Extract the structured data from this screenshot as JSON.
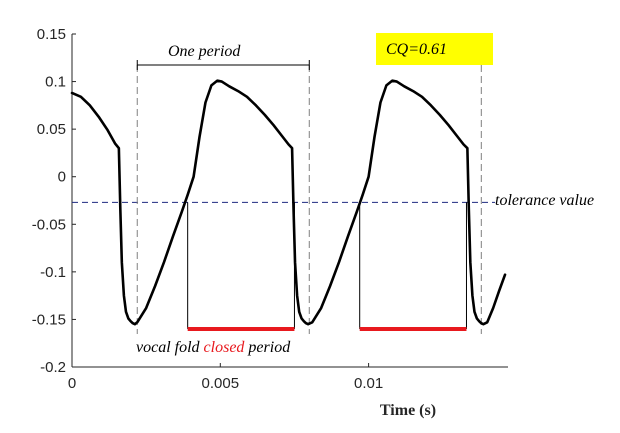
{
  "chart_data": {
    "type": "line",
    "title": "",
    "xlabel": "Time (s)",
    "ylabel": "",
    "xlim": [
      0,
      0.0147
    ],
    "ylim": [
      -0.2,
      0.15
    ],
    "x_ticks": [
      0,
      0.005,
      0.01
    ],
    "x_tick_labels": [
      "0",
      "0.005",
      "0.01"
    ],
    "y_ticks": [
      0.15,
      0.1,
      0.05,
      0,
      -0.05,
      -0.1,
      -0.15,
      -0.2
    ],
    "y_tick_labels": [
      "0.15",
      "0.1",
      "0.05",
      "0",
      "-0.05",
      "-0.1",
      "-0.15",
      "-0.2"
    ],
    "grid": false,
    "colors": {
      "signal": "#000000",
      "tolerance_line": "#1f2a80",
      "period_markers": "#808080",
      "closed_period": "#e8191e",
      "cq_box": "#ffff00"
    },
    "series": [
      {
        "x": [
          0,
          0.0003,
          0.0006,
          0.0009,
          0.0012,
          0.00145,
          0.00158,
          0.00163,
          0.00168,
          0.00175,
          0.00182,
          0.0019,
          0.00198,
          0.00205,
          0.00212,
          0.0022,
          0.0025,
          0.0028,
          0.0031,
          0.0034,
          0.0037,
          0.0039,
          0.0041,
          0.0043,
          0.0045,
          0.0047,
          0.0049,
          0.00505,
          0.0053,
          0.0056,
          0.0059,
          0.0062,
          0.0065,
          0.0068,
          0.0071,
          0.0073,
          0.00742,
          0.00747,
          0.00752,
          0.00759,
          0.00766,
          0.00774,
          0.00782,
          0.00789,
          0.00796,
          0.0081,
          0.0084,
          0.0087,
          0.009,
          0.0093,
          0.0096,
          0.0098,
          0.01,
          0.0102,
          0.0104,
          0.0106,
          0.0108,
          0.01095,
          0.0112,
          0.0115,
          0.0118,
          0.0121,
          0.0124,
          0.0127,
          0.013,
          0.0132,
          0.01333,
          0.01338,
          0.01343,
          0.0135,
          0.01357,
          0.01365,
          0.01373,
          0.0138,
          0.01387,
          0.014,
          0.0142,
          0.0144,
          0.0146
        ],
        "y": [
          0.088,
          0.084,
          0.075,
          0.063,
          0.049,
          0.035,
          0.03,
          -0.035,
          -0.09,
          -0.125,
          -0.142,
          -0.149,
          -0.152,
          -0.154,
          -0.155,
          -0.153,
          -0.138,
          -0.115,
          -0.09,
          -0.063,
          -0.037,
          -0.019,
          0.0,
          0.042,
          0.078,
          0.096,
          0.101,
          0.1,
          0.095,
          0.09,
          0.084,
          0.075,
          0.065,
          0.054,
          0.042,
          0.034,
          0.03,
          -0.035,
          -0.09,
          -0.125,
          -0.142,
          -0.149,
          -0.152,
          -0.154,
          -0.155,
          -0.153,
          -0.138,
          -0.115,
          -0.09,
          -0.063,
          -0.037,
          -0.019,
          0.0,
          0.042,
          0.078,
          0.096,
          0.101,
          0.1,
          0.095,
          0.09,
          0.084,
          0.075,
          0.065,
          0.054,
          0.042,
          0.034,
          0.03,
          -0.035,
          -0.09,
          -0.125,
          -0.142,
          -0.149,
          -0.152,
          -0.154,
          -0.155,
          -0.153,
          -0.138,
          -0.12,
          -0.103
        ]
      }
    ],
    "tolerance": {
      "y": -0.027,
      "label": "tolerance value"
    },
    "period_markers_x": [
      0.0022,
      0.008,
      0.0138
    ],
    "one_period": {
      "x_start": 0.0022,
      "x_end": 0.008,
      "label": "One period"
    },
    "closed_periods": [
      {
        "x_start": 0.0039,
        "x_end": 0.0075
      },
      {
        "x_start": 0.0097,
        "x_end": 0.0133
      }
    ],
    "closed_level": -0.16,
    "closed_label": {
      "before": "vocal fold ",
      "highlight": "closed",
      "after": " period"
    },
    "cq_label": "CQ=0.61"
  }
}
